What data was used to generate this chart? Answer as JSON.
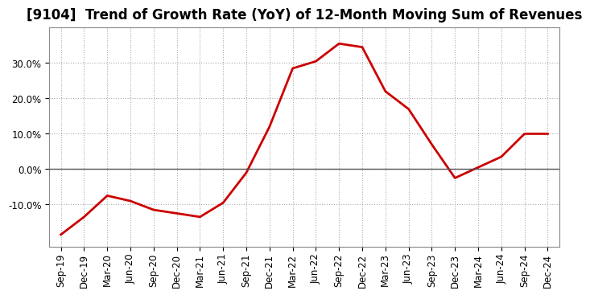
{
  "title": "[9104]  Trend of Growth Rate (YoY) of 12-Month Moving Sum of Revenues",
  "x_labels": [
    "Sep-19",
    "Dec-19",
    "Mar-20",
    "Jun-20",
    "Sep-20",
    "Dec-20",
    "Mar-21",
    "Jun-21",
    "Sep-21",
    "Dec-21",
    "Mar-22",
    "Jun-22",
    "Sep-22",
    "Dec-22",
    "Mar-23",
    "Jun-23",
    "Sep-23",
    "Dec-23",
    "Mar-24",
    "Jun-24",
    "Sep-24",
    "Dec-24"
  ],
  "y_values": [
    -0.185,
    -0.135,
    -0.075,
    -0.09,
    -0.115,
    -0.125,
    -0.135,
    -0.095,
    -0.01,
    0.12,
    0.285,
    0.305,
    0.355,
    0.345,
    0.22,
    0.17,
    0.07,
    -0.025,
    0.005,
    0.035,
    0.1,
    0.1
  ],
  "line_color": "#cc0000",
  "line_width": 2.0,
  "ylim": [
    -0.22,
    0.4
  ],
  "yticks": [
    -0.1,
    0.0,
    0.1,
    0.2,
    0.3
  ],
  "background_color": "#ffffff",
  "plot_bg_color": "#ffffff",
  "grid_color": "#aaaaaa",
  "title_fontsize": 12,
  "tick_fontsize": 8.5,
  "zero_line_color": "#555555"
}
